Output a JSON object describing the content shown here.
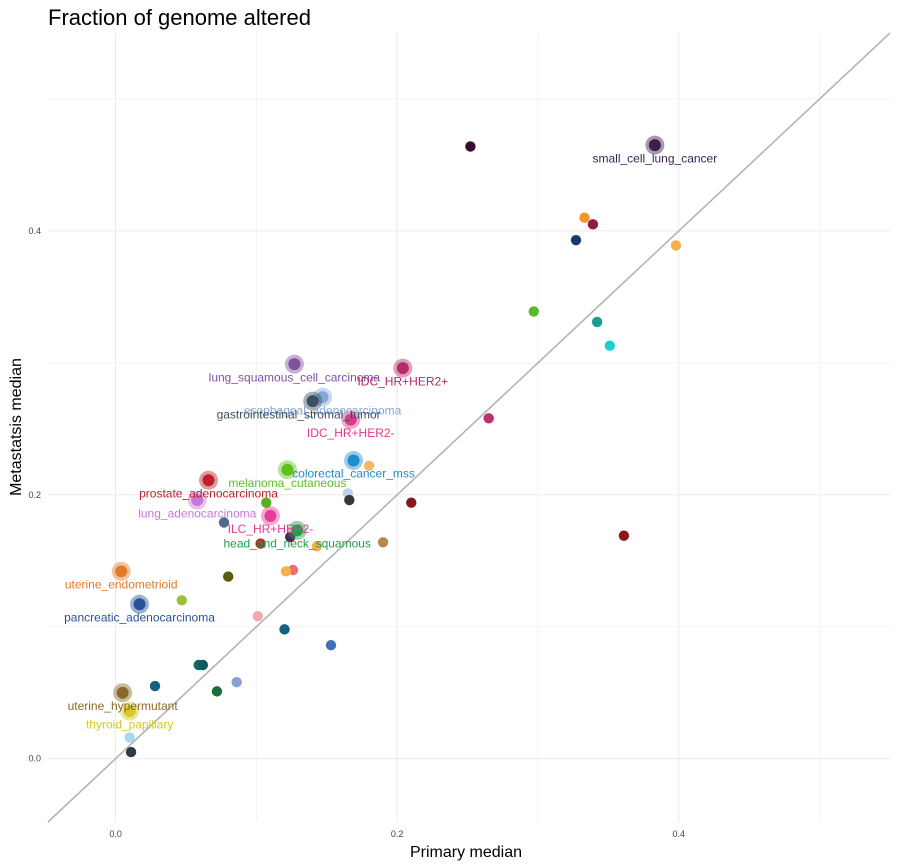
{
  "chart_data": {
    "type": "scatter",
    "title": "Fraction of genome altered",
    "xlabel": "Primary median",
    "ylabel": "Metastatsis median",
    "xlim": [
      -0.048,
      0.55
    ],
    "ylim": [
      -0.048,
      0.55
    ],
    "xticks": [
      0.0,
      0.2,
      0.4
    ],
    "yticks": [
      0.0,
      0.2,
      0.4
    ],
    "tick_labels": [
      "0.0",
      "0.2",
      "0.4"
    ],
    "grid": true,
    "reference_line": "y = x",
    "points": [
      {
        "x": 0.252,
        "y": 0.464,
        "color": "#3b0a2e"
      },
      {
        "x": 0.333,
        "y": 0.41,
        "color": "#f0962b"
      },
      {
        "x": 0.339,
        "y": 0.405,
        "color": "#8e1b4a"
      },
      {
        "x": 0.327,
        "y": 0.393,
        "color": "#163b6a"
      },
      {
        "x": 0.398,
        "y": 0.389,
        "color": "#f4b14a"
      },
      {
        "x": 0.297,
        "y": 0.339,
        "color": "#5ab82a"
      },
      {
        "x": 0.342,
        "y": 0.331,
        "color": "#1a9e93"
      },
      {
        "x": 0.351,
        "y": 0.313,
        "color": "#1ccfcf"
      },
      {
        "x": 0.265,
        "y": 0.258,
        "color": "#c0306e"
      },
      {
        "x": 0.18,
        "y": 0.222,
        "color": "#f4b86a"
      },
      {
        "x": 0.165,
        "y": 0.201,
        "color": "#bdd0ee"
      },
      {
        "x": 0.166,
        "y": 0.196,
        "color": "#34373b"
      },
      {
        "x": 0.21,
        "y": 0.194,
        "color": "#8a1818"
      },
      {
        "x": 0.361,
        "y": 0.169,
        "color": "#8a1818"
      },
      {
        "x": 0.19,
        "y": 0.164,
        "color": "#b7895a"
      },
      {
        "x": 0.143,
        "y": 0.161,
        "color": "#f4b14a"
      },
      {
        "x": 0.124,
        "y": 0.168,
        "color": "#4b2a5a"
      },
      {
        "x": 0.103,
        "y": 0.163,
        "color": "#a5312c"
      },
      {
        "x": 0.107,
        "y": 0.194,
        "color": "#55b21e"
      },
      {
        "x": 0.077,
        "y": 0.179,
        "color": "#4f6a8a"
      },
      {
        "x": 0.08,
        "y": 0.138,
        "color": "#5c5c0f"
      },
      {
        "x": 0.126,
        "y": 0.143,
        "color": "#ee6d7b"
      },
      {
        "x": 0.121,
        "y": 0.142,
        "color": "#f4b14a"
      },
      {
        "x": 0.047,
        "y": 0.12,
        "color": "#99c13a"
      },
      {
        "x": 0.101,
        "y": 0.108,
        "color": "#f7a6b1"
      },
      {
        "x": 0.12,
        "y": 0.098,
        "color": "#13607f"
      },
      {
        "x": 0.153,
        "y": 0.086,
        "color": "#3f6fb5"
      },
      {
        "x": 0.059,
        "y": 0.071,
        "color": "#136a5f"
      },
      {
        "x": 0.062,
        "y": 0.071,
        "color": "#0e5a5e"
      },
      {
        "x": 0.028,
        "y": 0.055,
        "color": "#13607f"
      },
      {
        "x": 0.072,
        "y": 0.051,
        "color": "#1a6e38"
      },
      {
        "x": 0.086,
        "y": 0.058,
        "color": "#8a9ed6"
      },
      {
        "x": 0.01,
        "y": 0.016,
        "color": "#a8d8f0"
      },
      {
        "x": 0.011,
        "y": 0.005,
        "color": "#2e3a45"
      }
    ],
    "labeled_points": [
      {
        "label": "small_cell_lung_cancer",
        "x": 0.383,
        "y": 0.465,
        "color": "#3b1f4f",
        "lx": 0.383,
        "ly": 0.455
      },
      {
        "label": "lung_squamous_cell_carcinoma",
        "x": 0.127,
        "y": 0.299,
        "color": "#7f52a0",
        "lx": 0.127,
        "ly": 0.289
      },
      {
        "label": "IDC_HR+HER2+",
        "x": 0.204,
        "y": 0.296,
        "color": "#b42a6a",
        "lx": 0.204,
        "ly": 0.286
      },
      {
        "label": "esophageal_adenocarcinoma",
        "x": 0.147,
        "y": 0.274,
        "color": "#86a8d8",
        "lx": 0.147,
        "ly": 0.264
      },
      {
        "label": "gastrointestinal_stromal_tumor",
        "x": 0.14,
        "y": 0.271,
        "color": "#3c4f5f",
        "lx": 0.13,
        "ly": 0.261
      },
      {
        "label": "IDC_HR+HER2-",
        "x": 0.167,
        "y": 0.257,
        "color": "#e0388a",
        "lx": 0.167,
        "ly": 0.247
      },
      {
        "label": "colorectal_cancer_mss",
        "x": 0.169,
        "y": 0.226,
        "color": "#1e8ec8",
        "lx": 0.169,
        "ly": 0.216
      },
      {
        "label": "melanoma_cutaneous",
        "x": 0.122,
        "y": 0.219,
        "color": "#60c020",
        "lx": 0.122,
        "ly": 0.209
      },
      {
        "label": "prostate_adenocarcinoma",
        "x": 0.066,
        "y": 0.211,
        "color": "#c0202a",
        "lx": 0.066,
        "ly": 0.201
      },
      {
        "label": "lung_adenocarcinoma",
        "x": 0.058,
        "y": 0.196,
        "color": "#c778d8",
        "lx": 0.058,
        "ly": 0.186
      },
      {
        "label": "ILC_HR+HER2-",
        "x": 0.11,
        "y": 0.184,
        "color": "#e43c9a",
        "lx": 0.11,
        "ly": 0.174
      },
      {
        "label": "head_and_neck_squamous",
        "x": 0.129,
        "y": 0.173,
        "color": "#1fa04a",
        "lx": 0.129,
        "ly": 0.163
      },
      {
        "label": "uterine_endometrioid",
        "x": 0.004,
        "y": 0.142,
        "color": "#e07b2a",
        "lx": 0.004,
        "ly": 0.132
      },
      {
        "label": "pancreatic_adenocarcinoma",
        "x": 0.017,
        "y": 0.117,
        "color": "#2a5298",
        "lx": 0.017,
        "ly": 0.107
      },
      {
        "label": "uterine_hypermutant",
        "x": 0.005,
        "y": 0.05,
        "color": "#8a6a2a",
        "lx": 0.005,
        "ly": 0.04
      },
      {
        "label": "thyroid_papillary",
        "x": 0.01,
        "y": 0.036,
        "color": "#d8c828",
        "lx": 0.01,
        "ly": 0.026
      }
    ]
  }
}
